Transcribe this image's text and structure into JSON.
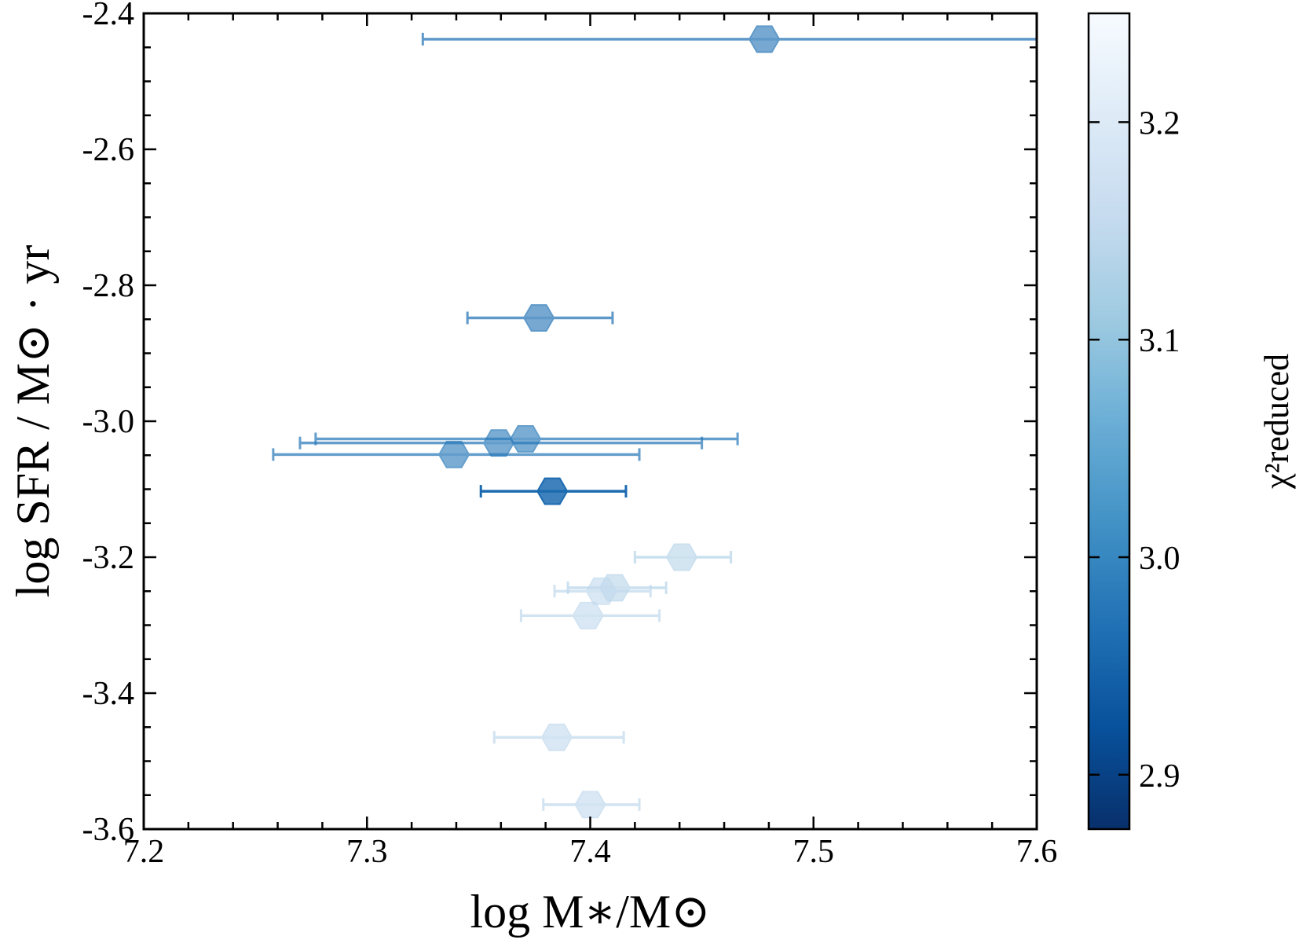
{
  "chart_data": {
    "type": "scatter",
    "marker": "hexagon",
    "xlabel": "log M∗/M⊙",
    "ylabel": "log SFR / M⊙ · yr",
    "xlim": [
      7.2,
      7.6
    ],
    "ylim": [
      -3.6,
      -2.4
    ],
    "xticks": [
      "7.2",
      "7.3",
      "7.4",
      "7.5",
      "7.6"
    ],
    "yticks": [
      "-3.6",
      "-3.4",
      "-3.2",
      "-3.0",
      "-2.8",
      "-2.6",
      "-2.4"
    ],
    "grid": false,
    "colorbar": {
      "label": "χ²reduced",
      "range": [
        2.875,
        3.25
      ],
      "ticks": [
        "2.9",
        "3.0",
        "3.1",
        "3.2"
      ],
      "colormap": "Blues",
      "colors": [
        "#08306b",
        "#08519c",
        "#2171b5",
        "#4292c6",
        "#6baed6",
        "#9ecae1",
        "#c6dbef",
        "#deebf7",
        "#f7fbff"
      ]
    },
    "points": [
      {
        "x": 7.478,
        "y": -2.438,
        "xerr_low": 7.325,
        "xerr_high": 7.6,
        "chi2": 2.97
      },
      {
        "x": 7.377,
        "y": -2.848,
        "xerr_low": 7.345,
        "xerr_high": 7.41,
        "chi2": 2.97
      },
      {
        "x": 7.371,
        "y": -3.026,
        "xerr_low": 7.277,
        "xerr_high": 7.466,
        "chi2": 2.98
      },
      {
        "x": 7.359,
        "y": -3.032,
        "xerr_low": 7.27,
        "xerr_high": 7.45,
        "chi2": 2.98
      },
      {
        "x": 7.339,
        "y": -3.049,
        "xerr_low": 7.258,
        "xerr_high": 7.422,
        "chi2": 2.98
      },
      {
        "x": 7.383,
        "y": -3.103,
        "xerr_low": 7.351,
        "xerr_high": 7.416,
        "chi2": 2.96
      },
      {
        "x": 7.441,
        "y": -3.2,
        "xerr_low": 7.42,
        "xerr_high": 7.463,
        "chi2": 3.14
      },
      {
        "x": 7.411,
        "y": -3.245,
        "xerr_low": 7.39,
        "xerr_high": 7.434,
        "chi2": 3.14
      },
      {
        "x": 7.405,
        "y": -3.25,
        "xerr_low": 7.384,
        "xerr_high": 7.427,
        "chi2": 3.15
      },
      {
        "x": 7.399,
        "y": -3.286,
        "xerr_low": 7.369,
        "xerr_high": 7.431,
        "chi2": 3.15
      },
      {
        "x": 7.385,
        "y": -3.465,
        "xerr_low": 7.357,
        "xerr_high": 7.415,
        "chi2": 3.15
      },
      {
        "x": 7.4,
        "y": -3.564,
        "xerr_low": 7.379,
        "xerr_high": 7.422,
        "chi2": 3.15
      }
    ]
  }
}
